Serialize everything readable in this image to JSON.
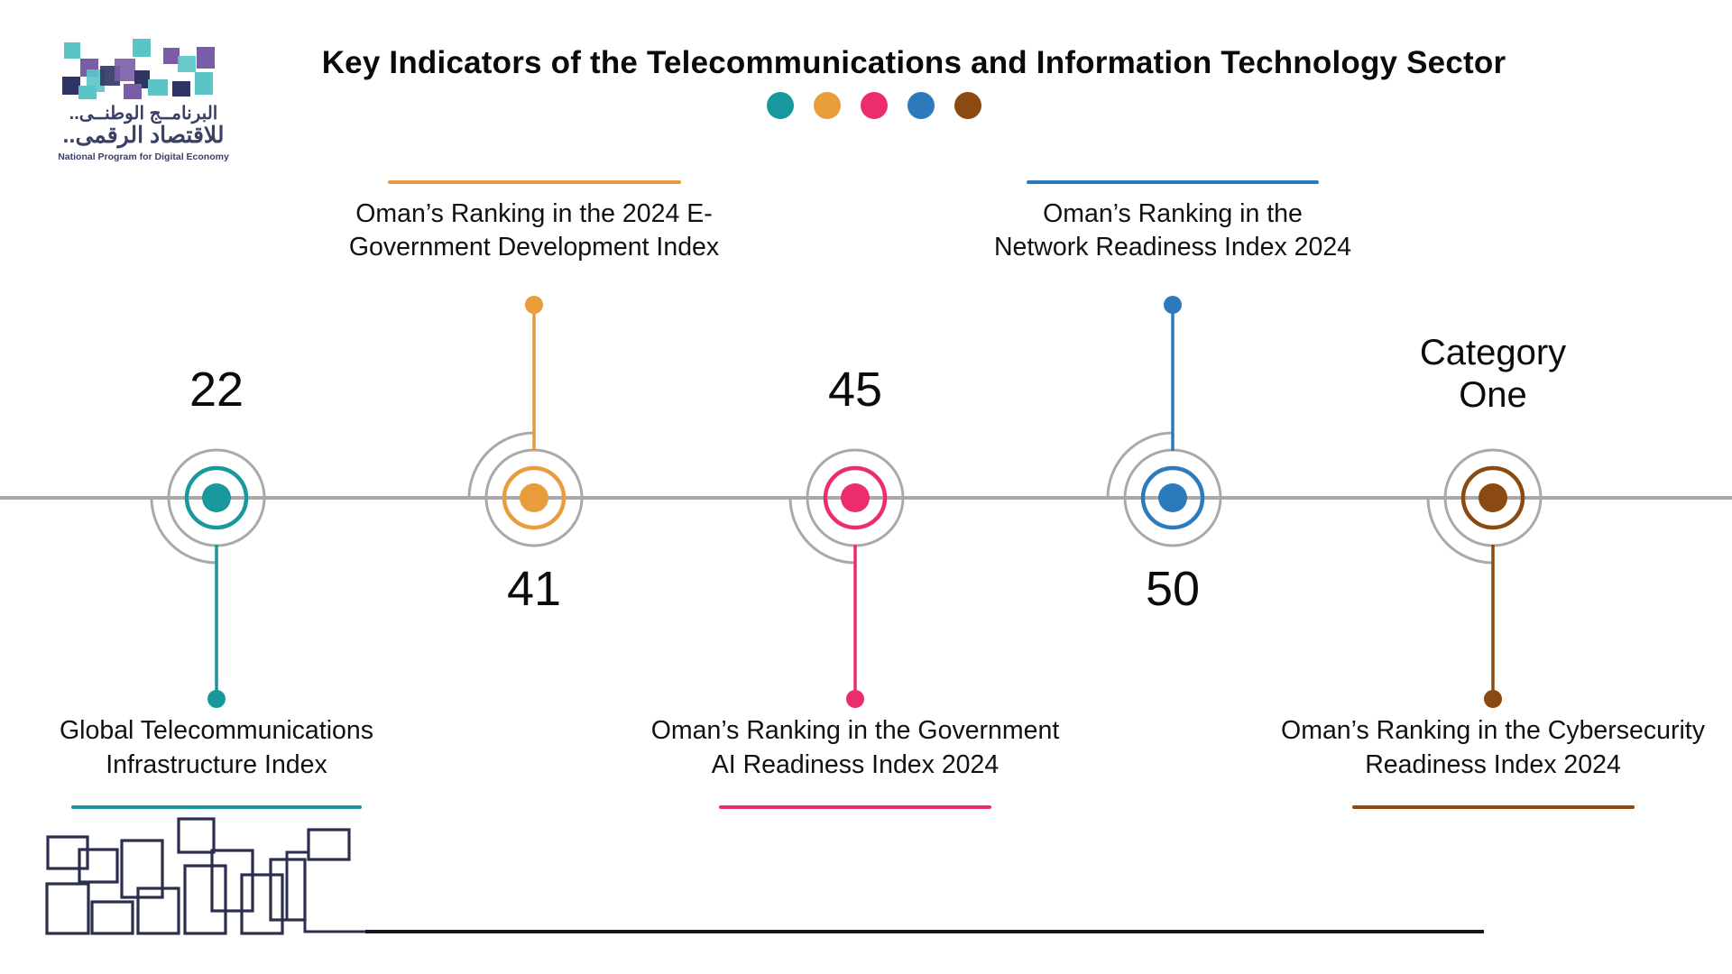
{
  "logo": {
    "arabic_line1": "البرنامــج الوطنــى..",
    "arabic_line2": "للاقتصاد الرقمى..",
    "tagline": "National Program for Digital Economy"
  },
  "title": "Key Indicators of the Telecommunications and Information Technology Sector",
  "legend_dots": [
    "#18989D",
    "#E99C3C",
    "#EB2D6F",
    "#2C79BB",
    "#8B4A12"
  ],
  "milestones": [
    {
      "value": "22",
      "label": "Global Telecommunications\nInfrastructure Index",
      "color": "#18989D",
      "label_side": "below"
    },
    {
      "value": "41",
      "label": "Oman’s Ranking in the 2024 E-\nGovernment Development Index",
      "color": "#E99C3C",
      "label_side": "above"
    },
    {
      "value": "45",
      "label": "Oman’s Ranking in the Government\nAI Readiness Index 2024",
      "color": "#EB2D6F",
      "label_side": "below"
    },
    {
      "value": "50",
      "label": "Oman’s Ranking in the\nNetwork Readiness Index 2024",
      "color": "#2C79BB",
      "label_side": "above"
    },
    {
      "value": "Category\nOne",
      "label": "Oman’s Ranking in the Cybersecurity\nReadiness Index 2024",
      "color": "#8B4A12",
      "label_side": "below"
    }
  ],
  "colors": {
    "timeline_gray": "#A9A9A9",
    "decorative_navy": "#2B2E4E",
    "logo_teal": "#5BC4C6",
    "logo_purple": "#7A5CA8",
    "logo_navy": "#2E3564"
  }
}
